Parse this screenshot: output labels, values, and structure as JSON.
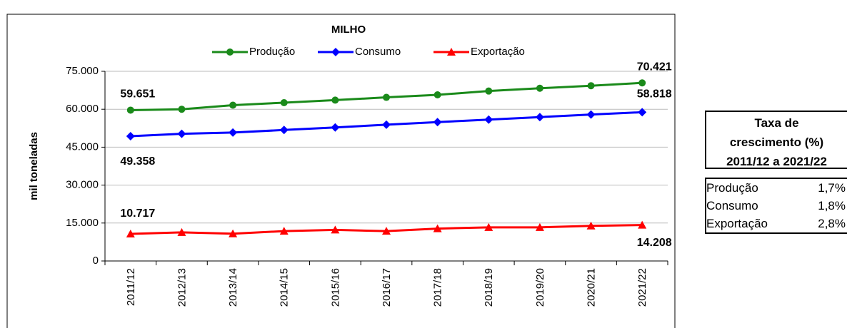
{
  "chart_data": {
    "type": "line",
    "title": "MILHO",
    "y_label": "mil toneladas",
    "categories": [
      "2011/12",
      "2012/13",
      "2013/14",
      "2014/15",
      "2015/16",
      "2016/17",
      "2017/18",
      "2018/19",
      "2019/20",
      "2020/21",
      "2021/22"
    ],
    "series": [
      {
        "name": "Produção",
        "color": "#1a8a1a",
        "marker": "circle",
        "values": [
          59651,
          60000,
          61600,
          62600,
          63600,
          64700,
          65700,
          67200,
          68300,
          69300,
          70421
        ],
        "value_labels": [
          "59.651",
          null,
          null,
          null,
          null,
          null,
          null,
          null,
          null,
          null,
          "70.421"
        ]
      },
      {
        "name": "Consumo",
        "color": "#0000ff",
        "marker": "diamond",
        "values": [
          49358,
          50300,
          50800,
          51800,
          52800,
          53900,
          54900,
          55900,
          56900,
          57900,
          58818
        ],
        "value_labels": [
          "49.358",
          null,
          null,
          null,
          null,
          null,
          null,
          null,
          null,
          null,
          "58.818"
        ]
      },
      {
        "name": "Exportação",
        "color": "#ff0000",
        "marker": "triangle",
        "values": [
          10717,
          11300,
          10800,
          11800,
          12300,
          11800,
          12800,
          13300,
          13300,
          13900,
          14208
        ],
        "value_labels": [
          "10.717",
          null,
          null,
          null,
          null,
          null,
          null,
          null,
          null,
          null,
          "14.208"
        ]
      }
    ],
    "ylim": [
      0,
      75000
    ],
    "yticks": [
      0,
      {
        "value": 15000,
        "label": "15.000"
      },
      {
        "value": 30000,
        "label": "30.000"
      },
      {
        "value": 45000,
        "label": "45.000"
      },
      {
        "value": 60000,
        "label": "60.000"
      },
      {
        "value": 75000,
        "label": "75.000"
      }
    ],
    "grid": true,
    "legend": "top"
  },
  "table": {
    "header": [
      "Taxa de",
      "crescimento (%)",
      "2011/12 a 2021/22"
    ],
    "rows": [
      [
        "Produção",
        "1,7%"
      ],
      [
        "Consumo",
        "1,8%"
      ],
      [
        "Exportação",
        "2,8%"
      ]
    ]
  }
}
